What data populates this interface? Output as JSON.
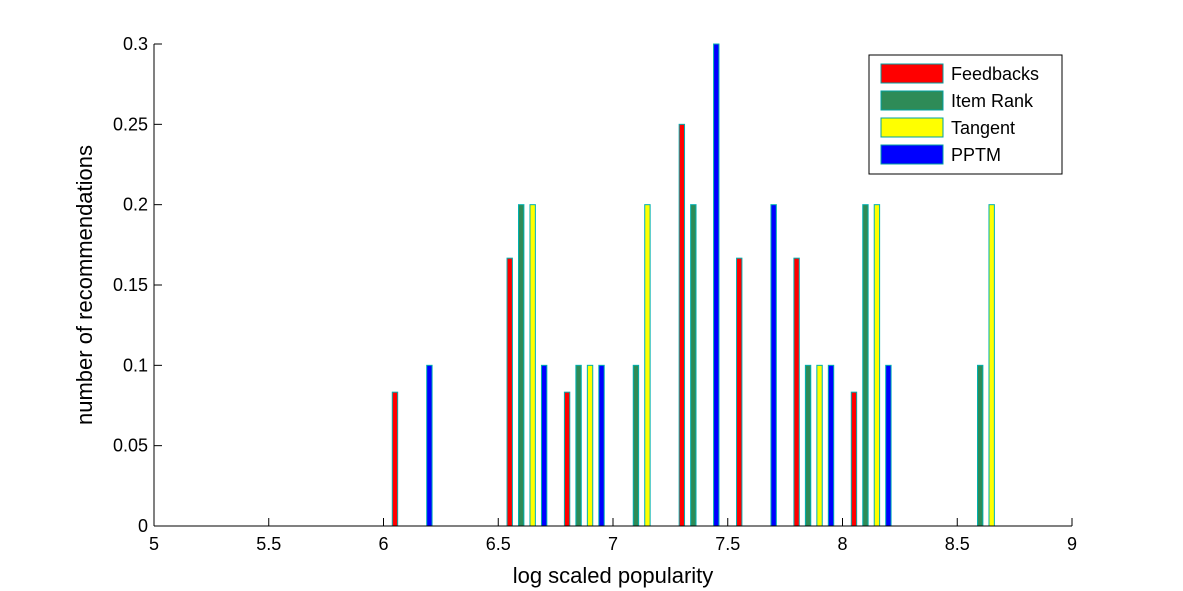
{
  "chart_data": {
    "type": "bar",
    "title": "",
    "xlabel": "log scaled popularity",
    "ylabel": "number of recommendations",
    "xlim": [
      5,
      9
    ],
    "ylim": [
      0,
      0.3
    ],
    "xticks": [
      "5",
      "5.5",
      "6",
      "6.5",
      "7",
      "7.5",
      "8",
      "8.5",
      "9"
    ],
    "yticks": [
      "0",
      "0.05",
      "0.1",
      "0.15",
      "0.2",
      "0.25",
      "0.3"
    ],
    "grid": false,
    "legend_position": "top-right",
    "bin_centers": [
      5.125,
      5.375,
      5.625,
      5.875,
      6.125,
      6.375,
      6.625,
      6.875,
      7.125,
      7.375,
      7.625,
      7.875,
      8.125,
      8.375,
      8.625,
      8.875
    ],
    "series": [
      {
        "name": "Feedbacks",
        "color": "#ff0000",
        "values": [
          0,
          0,
          0,
          0,
          0.0833,
          0,
          0.1667,
          0.0833,
          0,
          0.25,
          0.1667,
          0.1667,
          0.0833,
          0,
          0,
          0
        ]
      },
      {
        "name": "Item Rank",
        "color": "#2e8b57",
        "values": [
          0,
          0,
          0,
          0,
          0,
          0,
          0.2,
          0.1,
          0.1,
          0.2,
          0,
          0.1,
          0.2,
          0,
          0.1,
          0
        ]
      },
      {
        "name": "Tangent",
        "color": "#ffff00",
        "values": [
          0,
          0,
          0,
          0,
          0,
          0,
          0.2,
          0.1,
          0.2,
          0,
          0,
          0.1,
          0.2,
          0,
          0.2,
          0
        ]
      },
      {
        "name": "PPTM",
        "color": "#0000ff",
        "values": [
          0,
          0,
          0,
          0,
          0.1,
          0,
          0.1,
          0.1,
          0,
          0.3,
          0.2,
          0.1,
          0.1,
          0,
          0,
          0
        ]
      }
    ]
  }
}
